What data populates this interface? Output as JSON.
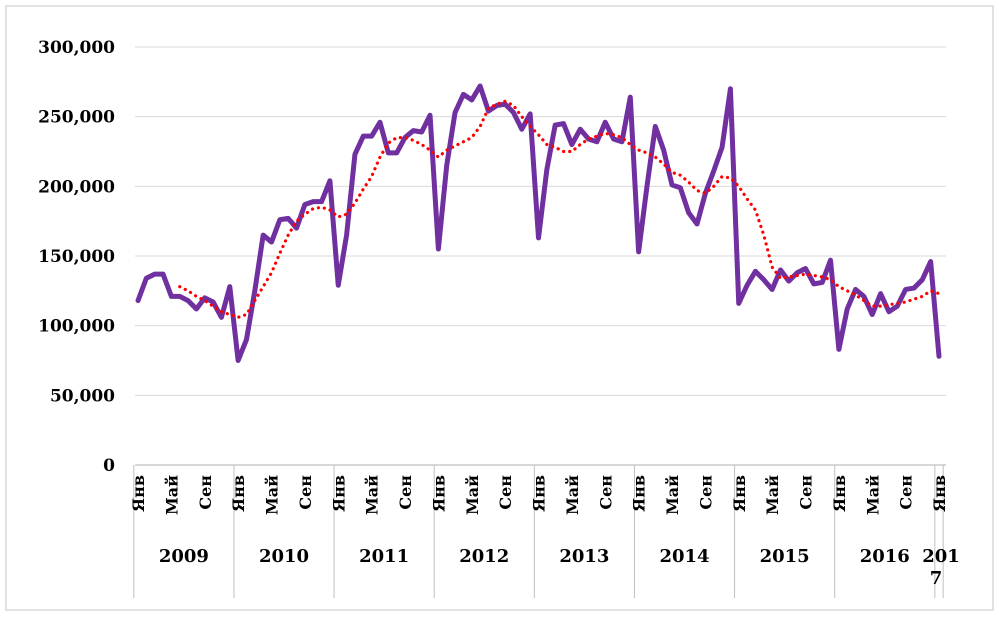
{
  "chart_data": {
    "type": "line",
    "title": "",
    "xlabel": "",
    "ylabel": "",
    "ylim": [
      0,
      300000
    ],
    "yticks": [
      "0",
      "50,000",
      "100,000",
      "150,000",
      "200,000",
      "250,000",
      "300,000"
    ],
    "ytick_values": [
      0,
      50000,
      100000,
      150000,
      200000,
      250000,
      300000
    ],
    "month_labels": [
      "Янв",
      "Май",
      "Сен"
    ],
    "years": [
      "2009",
      "2010",
      "2011",
      "2012",
      "2013",
      "2014",
      "2015",
      "2016",
      "2017"
    ],
    "x_start": "2009-01",
    "legend": "none",
    "grid": "horizontal",
    "series": [
      {
        "color": "#7030A0",
        "style": "solid",
        "values": [
          118000,
          134000,
          137000,
          137000,
          121000,
          121000,
          118000,
          112000,
          120000,
          117000,
          106000,
          128000,
          75000,
          90000,
          125000,
          165000,
          160000,
          176000,
          177000,
          170000,
          187000,
          189000,
          189000,
          204000,
          129000,
          165000,
          223000,
          236000,
          236000,
          246000,
          224000,
          224000,
          235000,
          240000,
          239000,
          251000,
          155000,
          215000,
          253000,
          266000,
          262000,
          272000,
          254000,
          258000,
          259000,
          253000,
          241000,
          252000,
          163000,
          212000,
          244000,
          245000,
          230000,
          241000,
          234000,
          232000,
          246000,
          234000,
          232000,
          264000,
          153000,
          200000,
          243000,
          226000,
          201000,
          199000,
          181000,
          173000,
          195000,
          211000,
          228000,
          270000,
          116000,
          129000,
          139000,
          133000,
          126000,
          140000,
          132000,
          138000,
          141000,
          130000,
          131000,
          147000,
          83000,
          112000,
          126000,
          121000,
          108000,
          123000,
          110000,
          114000,
          126000,
          127000,
          133000,
          146000,
          78000
        ]
      },
      {
        "color": "#FF0000",
        "style": "dotted",
        "values": [
          null,
          null,
          null,
          null,
          null,
          128000,
          125000,
          121000,
          118000,
          114000,
          110000,
          108000,
          106000,
          108000,
          118000,
          128000,
          138000,
          152000,
          165000,
          175000,
          180000,
          184000,
          185000,
          183000,
          178000,
          180000,
          188000,
          198000,
          207000,
          221000,
          231000,
          235000,
          235000,
          233000,
          230000,
          226000,
          221000,
          226000,
          229000,
          232000,
          235000,
          243000,
          256000,
          259000,
          261000,
          258000,
          250000,
          243000,
          237000,
          230000,
          228000,
          225000,
          225000,
          230000,
          234000,
          236000,
          238000,
          237000,
          235000,
          230000,
          226000,
          224000,
          221000,
          216000,
          210000,
          208000,
          203000,
          197000,
          195000,
          200000,
          207000,
          206000,
          200000,
          191000,
          183000,
          165000,
          142000,
          134000,
          135000,
          136000,
          137000,
          136000,
          135000,
          133000,
          128000,
          125000,
          122000,
          118000,
          114000,
          114000,
          115000,
          116000,
          117000,
          119000,
          121000,
          125000,
          123000
        ]
      }
    ]
  }
}
